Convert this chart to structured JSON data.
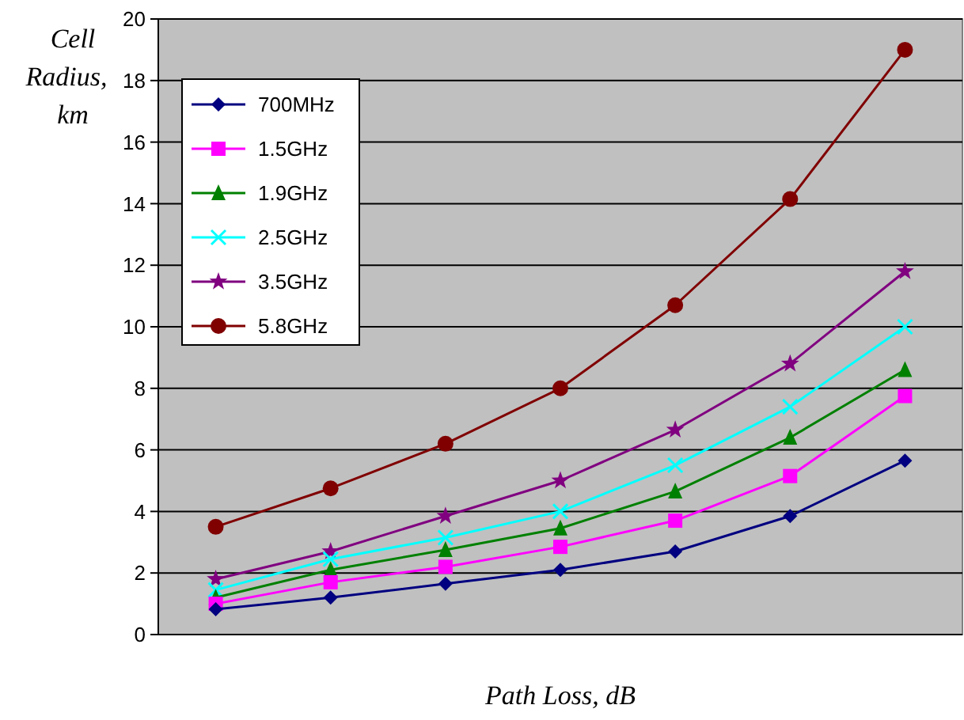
{
  "chart_data": {
    "type": "line",
    "xlabel": "Path Loss, dB",
    "ylabel": "Cell Radius, km",
    "categories": [
      null,
      null,
      null,
      null,
      null,
      null,
      null
    ],
    "ylim": [
      0,
      20
    ],
    "yticks": [
      0,
      2,
      4,
      6,
      8,
      10,
      12,
      14,
      16,
      18,
      20
    ],
    "grid": "y",
    "legend": "top left",
    "series": [
      {
        "name": "700MHz",
        "color": "#000080",
        "marker": "diamond",
        "values": [
          0.82,
          1.2,
          1.65,
          2.1,
          2.7,
          3.85,
          5.65
        ]
      },
      {
        "name": "1.5GHz",
        "color": "#ff00ff",
        "marker": "square",
        "values": [
          1.0,
          1.7,
          2.2,
          2.85,
          3.7,
          5.15,
          7.75
        ]
      },
      {
        "name": "1.9GHz",
        "color": "#008000",
        "marker": "triangle",
        "values": [
          1.2,
          2.1,
          2.75,
          3.45,
          4.65,
          6.4,
          8.6
        ]
      },
      {
        "name": "2.5GHz",
        "color": "#00ffff",
        "marker": "cross",
        "values": [
          1.45,
          2.45,
          3.15,
          4.0,
          5.5,
          7.4,
          10.0
        ]
      },
      {
        "name": "3.5GHz",
        "color": "#800080",
        "marker": "star",
        "values": [
          1.8,
          2.7,
          3.85,
          5.0,
          6.65,
          8.8,
          11.8
        ]
      },
      {
        "name": "5.8GHz",
        "color": "#800000",
        "marker": "circle",
        "values": [
          3.5,
          4.75,
          6.2,
          8.0,
          10.7,
          14.15,
          19.0
        ]
      }
    ]
  }
}
